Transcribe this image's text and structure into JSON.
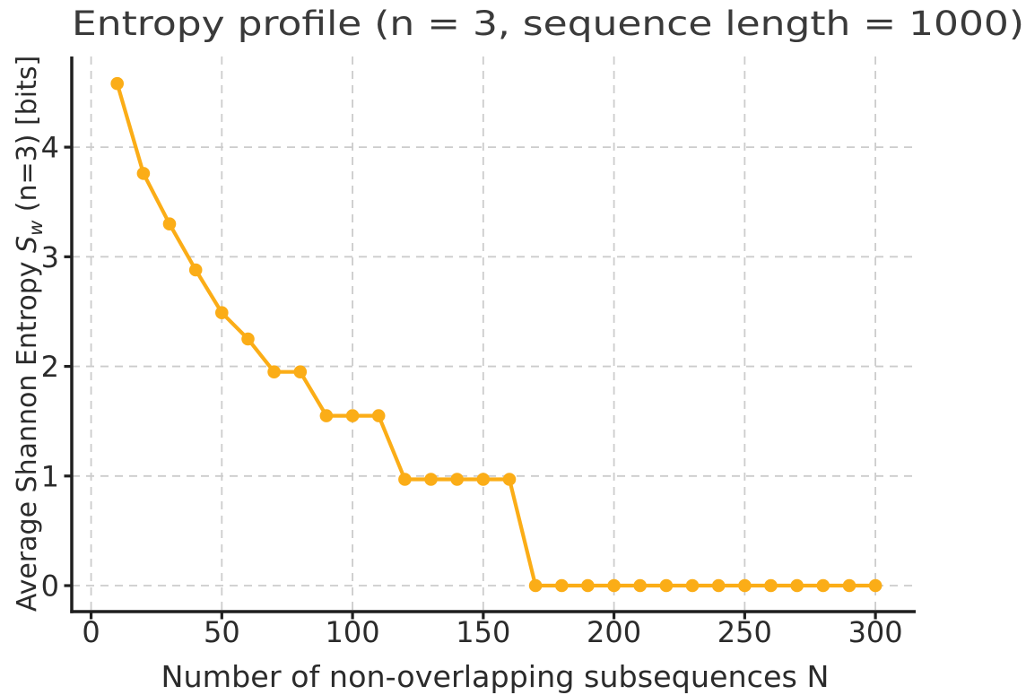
{
  "chart_data": {
    "type": "line",
    "title": "Entropy profile (n = 3, sequence length = 1000)",
    "xlabel": "Number of non-overlapping subsequences N",
    "ylabel": {
      "plain": "Average Shannon Entropy S_w (n=3) [bits]",
      "prefix": "Average Shannon Entropy ",
      "symbol": "S",
      "subscript": "w",
      "suffix": " (n=3) [bits]"
    },
    "series": [
      {
        "name": "average-shannon-entropy",
        "x": [
          10,
          20,
          30,
          40,
          50,
          60,
          70,
          80,
          90,
          100,
          110,
          120,
          130,
          140,
          150,
          160,
          170,
          180,
          190,
          200,
          210,
          220,
          230,
          240,
          250,
          260,
          270,
          280,
          290,
          300
        ],
        "y": [
          4.58,
          3.76,
          3.3,
          2.88,
          2.49,
          2.25,
          1.95,
          1.95,
          1.55,
          1.55,
          1.55,
          0.97,
          0.97,
          0.97,
          0.97,
          0.97,
          0,
          0,
          0,
          0,
          0,
          0,
          0,
          0,
          0,
          0,
          0,
          0,
          0,
          0
        ]
      }
    ],
    "xticks": [
      "0",
      "50",
      "100",
      "150",
      "200",
      "250",
      "300"
    ],
    "xtick_values": [
      0,
      50,
      100,
      150,
      200,
      250,
      300
    ],
    "yticks": [
      "0",
      "1",
      "2",
      "3",
      "4"
    ],
    "ytick_values": [
      0,
      1,
      2,
      3,
      4
    ],
    "xlim": [
      -7.4,
      315.4
    ],
    "ylim": [
      -0.237,
      4.827
    ],
    "grid": "dashed both",
    "legend_position": "none",
    "marker": "circle",
    "colors": {
      "line": "#fbad17",
      "marker": "#fbad17",
      "grid": "#cccccc",
      "spine": "#1f1f1f",
      "tick_label": "#2b2b2b",
      "title": "#3a3a3a",
      "axis_label": "#2b2b2b",
      "background": "#ffffff"
    }
  }
}
